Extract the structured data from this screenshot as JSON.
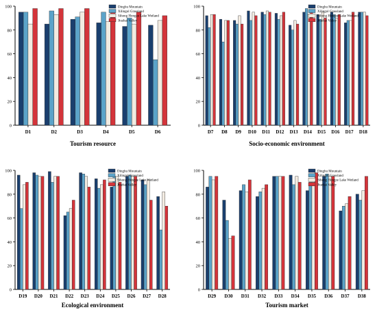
{
  "colors": {
    "series": [
      "#1a3f6e",
      "#5ba3c9",
      "#f2ebe1",
      "#d4343a"
    ],
    "edge": "#2a2a2a"
  },
  "chart_data": [
    {
      "type": "bar",
      "xlabel": "Tourism resource",
      "categories": [
        "D1",
        "D2",
        "D3",
        "D4",
        "D5",
        "D6"
      ],
      "ylim": [
        0,
        100
      ],
      "yticks": [
        0,
        20,
        40,
        60,
        80,
        100
      ],
      "grid": false,
      "legend_position": "top-right",
      "series": [
        {
          "name": "Dinghu Mountain",
          "values": [
            95,
            85,
            89,
            86,
            83,
            84
          ]
        },
        {
          "name": "Xilingol Grassland",
          "values": [
            95,
            96,
            91,
            95,
            90,
            55
          ]
        },
        {
          "name": "Sihong Hongze Lake Wetland",
          "values": [
            85,
            93,
            95,
            87,
            85,
            88
          ]
        },
        {
          "name": "Jiuzhai Valley",
          "values": [
            98,
            98,
            98,
            95,
            95,
            92
          ]
        }
      ]
    },
    {
      "type": "bar",
      "xlabel": "Socio-economic environment",
      "categories": [
        "D7",
        "D8",
        "D9",
        "D10",
        "D11",
        "D12",
        "D13",
        "D14",
        "D15",
        "D16",
        "D17",
        "D18"
      ],
      "ylim": [
        0,
        100
      ],
      "yticks": [
        0,
        20,
        40,
        60,
        80,
        100
      ],
      "grid": false,
      "legend_position": "top-right",
      "series": [
        {
          "name": "Dinghu Mountain",
          "values": [
            92,
            89,
            88,
            96,
            95,
            94,
            84,
            95,
            93,
            95,
            86,
            95
          ]
        },
        {
          "name": "Xilingol Grassland",
          "values": [
            82,
            70,
            85,
            88,
            93,
            89,
            80,
            98,
            89,
            93,
            88,
            95
          ]
        },
        {
          "name": "Sihong Hongze Lake Wetland",
          "values": [
            93,
            88,
            92,
            95,
            96,
            92,
            88,
            93,
            95,
            90,
            88,
            95
          ]
        },
        {
          "name": "Jiuzhai Valley",
          "values": [
            93,
            88,
            85,
            92,
            95,
            95,
            85,
            95,
            90,
            93,
            95,
            92
          ]
        }
      ]
    },
    {
      "type": "bar",
      "xlabel": "Ecological environment",
      "categories": [
        "D19",
        "D20",
        "D21",
        "D22",
        "D23",
        "D24",
        "D25",
        "D26",
        "D27",
        "D28"
      ],
      "ylim": [
        0,
        100
      ],
      "yticks": [
        0,
        20,
        40,
        60,
        80,
        100
      ],
      "grid": false,
      "legend_position": "top-right",
      "series": [
        {
          "name": "Dinghu Mountain",
          "values": [
            96,
            98,
            99,
            62,
            98,
            93,
            86,
            95,
            92,
            78
          ]
        },
        {
          "name": "Xilingol Grassland",
          "values": [
            68,
            96,
            90,
            65,
            97,
            85,
            95,
            96,
            88,
            50
          ]
        },
        {
          "name": "Sihong Hongze Lake Wetland",
          "values": [
            88,
            95,
            95,
            68,
            95,
            88,
            95,
            95,
            92,
            82
          ]
        },
        {
          "name": "Jiuzhai Valley",
          "values": [
            90,
            95,
            95,
            75,
            86,
            92,
            90,
            95,
            75,
            70
          ]
        }
      ]
    },
    {
      "type": "bar",
      "xlabel": "Tourism market",
      "categories": [
        "D29",
        "D30",
        "D31",
        "D32",
        "D33",
        "D34",
        "D35",
        "D36",
        "D37",
        "D38"
      ],
      "ylim": [
        0,
        100
      ],
      "yticks": [
        0,
        20,
        40,
        60,
        80,
        100
      ],
      "grid": false,
      "legend_position": "top-right",
      "series": [
        {
          "name": "Dinghu Mountain",
          "values": [
            86,
            75,
            83,
            78,
            95,
            96,
            83,
            95,
            66,
            80
          ]
        },
        {
          "name": "Xilingol Grassland",
          "values": [
            95,
            58,
            88,
            82,
            95,
            88,
            90,
            97,
            70,
            75
          ]
        },
        {
          "name": "Sihong Hongze Lake Wetland",
          "values": [
            92,
            43,
            82,
            85,
            95,
            95,
            90,
            95,
            72,
            83
          ]
        },
        {
          "name": "Jiuzhai Valley",
          "values": [
            95,
            45,
            92,
            88,
            95,
            90,
            98,
            95,
            78,
            95
          ]
        }
      ]
    }
  ]
}
